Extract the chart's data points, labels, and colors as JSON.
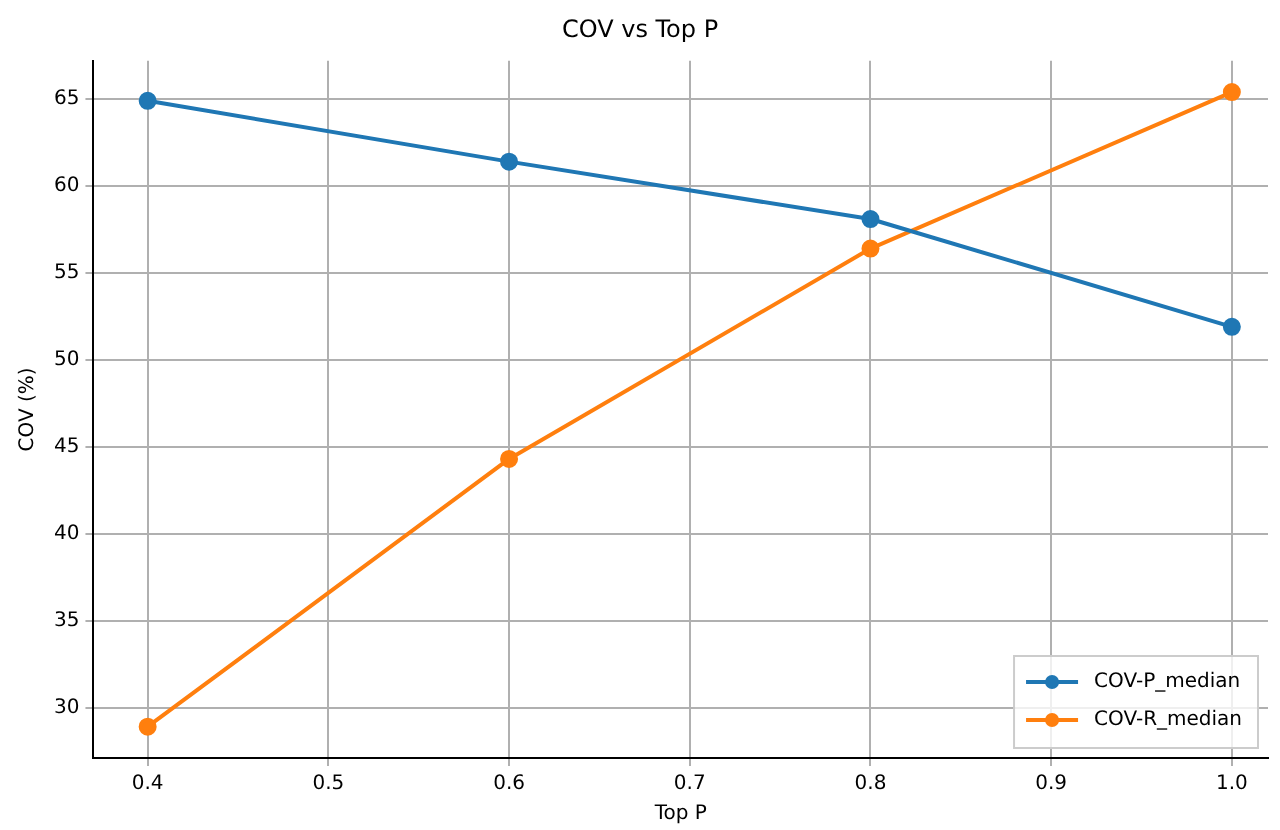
{
  "chart_data": {
    "type": "line",
    "title": "COV vs Top P",
    "xlabel": "Top P",
    "ylabel": "COV (%)",
    "x": [
      0.4,
      0.6,
      0.8,
      1.0
    ],
    "series": [
      {
        "name": "COV-P_median",
        "color": "#1f77b4",
        "values": [
          64.9,
          61.4,
          58.1,
          51.9
        ]
      },
      {
        "name": "COV-R_median",
        "color": "#ff7f0e",
        "values": [
          28.9,
          44.3,
          56.4,
          65.4
        ]
      }
    ],
    "xlim": [
      0.37,
      1.02
    ],
    "xticks": [
      0.4,
      0.5,
      0.6,
      0.7,
      0.8,
      0.9,
      {
        "value": 1,
        "label": "1.0"
      }
    ],
    "ylim": [
      27.1,
      67.2
    ],
    "yticks": [
      30,
      35,
      40,
      45,
      50,
      55,
      60,
      65
    ],
    "grid": true,
    "legend": "bottom right",
    "marker": "circle",
    "line_style": "solid"
  }
}
